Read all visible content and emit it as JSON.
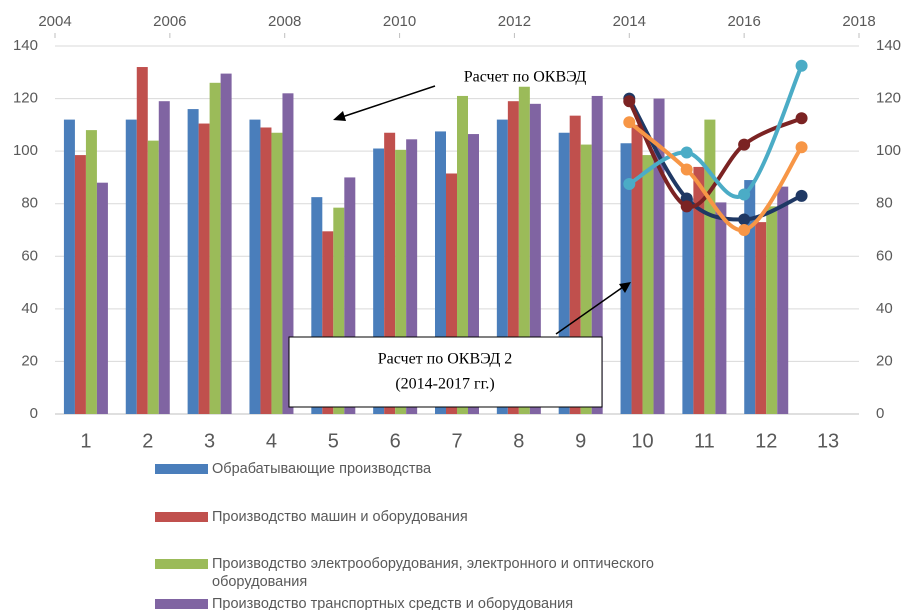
{
  "chart_data": {
    "type": "bar",
    "categories": [
      "1",
      "2",
      "3",
      "4",
      "5",
      "6",
      "7",
      "8",
      "9",
      "10",
      "11",
      "12",
      "13"
    ],
    "series": [
      {
        "name": "Обрабатывающие производства",
        "color": "#4a7ebb",
        "values": [
          112,
          112,
          116,
          112,
          82.5,
          101,
          107.5,
          112,
          107,
          103,
          82,
          89,
          null
        ]
      },
      {
        "name": "Производство машин и оборудования",
        "color": "#c0504d",
        "values": [
          98.5,
          132,
          110.5,
          109,
          69.5,
          107,
          91.5,
          119,
          113.5,
          110,
          94,
          73,
          null
        ]
      },
      {
        "name": "Производство электрооборудования, электронного и оптического оборудования",
        "color": "#9bbb59",
        "values": [
          108,
          104,
          126,
          107,
          78.5,
          100.5,
          121,
          124.5,
          102.5,
          98.5,
          112,
          79,
          null
        ]
      },
      {
        "name": "Производство транспортных средств и оборудования",
        "color": "#8064a2",
        "values": [
          88,
          119,
          129.5,
          122,
          90,
          104.5,
          106.5,
          118,
          121,
          120,
          80.5,
          86.5,
          null
        ]
      }
    ],
    "line_x": [
      2014,
      2015,
      2016,
      2017
    ],
    "lines": [
      {
        "color": "#1f3864",
        "axis": "y2",
        "values": [
          120,
          82,
          74,
          83
        ]
      },
      {
        "color": "#7b2323",
        "axis": "y2",
        "values": [
          119,
          79,
          102.5,
          112.5
        ]
      },
      {
        "color": "#4bacc6",
        "axis": "y2",
        "values": [
          87.5,
          99.5,
          83.5,
          132.5
        ]
      },
      {
        "color": "#f79646",
        "axis": "y2",
        "values": [
          111,
          93,
          70,
          101.5
        ]
      }
    ],
    "x2lim": [
      2004,
      2018
    ],
    "x2ticks": [
      2004,
      2006,
      2008,
      2010,
      2012,
      2014,
      2016,
      2018
    ],
    "ylim": [
      0,
      140
    ],
    "yticks": [
      0,
      20,
      40,
      60,
      80,
      100,
      120,
      140
    ],
    "y2lim": [
      0,
      140
    ],
    "y2ticks": [
      0,
      20,
      40,
      60,
      80,
      100,
      120,
      140
    ],
    "grid": true,
    "annotations": [
      "Расчет по ОКВЭД",
      "Расчет по ОКВЭД 2",
      "(2014-2017 гг.)"
    ]
  }
}
